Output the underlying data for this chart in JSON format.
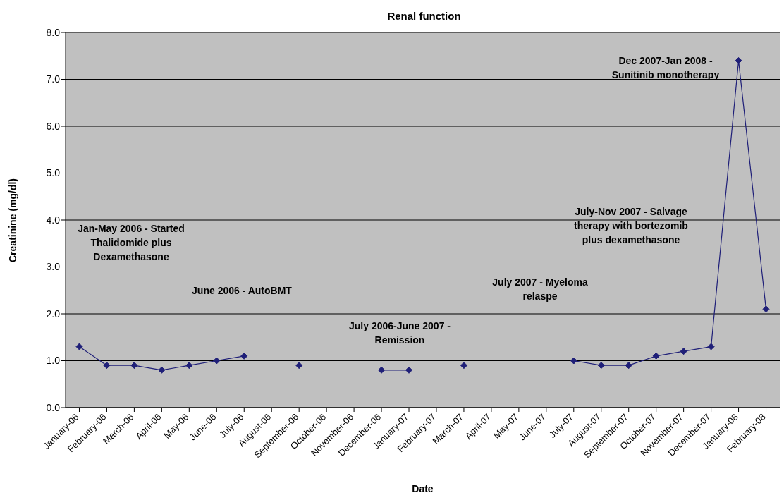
{
  "chart_data": {
    "type": "line",
    "title": "Renal function",
    "xlabel": "Date",
    "ylabel": "Creatinine (mg/dl)",
    "categories": [
      "January-06",
      "February-06",
      "March-06",
      "April-06",
      "May-06",
      "June-06",
      "July-06",
      "August-06",
      "September-06",
      "October-06",
      "November-06",
      "December-06",
      "January-07",
      "February-07",
      "March-07",
      "April-07",
      "May-07",
      "June-07",
      "July-07",
      "August-07",
      "September-07",
      "October-07",
      "November-07",
      "December-07",
      "January-08",
      "February-08"
    ],
    "series": [
      {
        "color": "#1f1f78",
        "values": [
          1.3,
          0.9,
          0.9,
          0.8,
          0.9,
          1.0,
          1.1,
          null,
          0.9,
          null,
          null,
          0.8,
          0.8,
          null,
          0.9,
          null,
          null,
          null,
          1.0,
          0.9,
          0.9,
          1.1,
          1.2,
          1.3,
          7.4,
          2.1
        ]
      }
    ],
    "ylim": [
      0,
      8
    ],
    "yticks": [
      {
        "value": 0,
        "label": "0.0"
      },
      {
        "value": 1,
        "label": "1.0"
      },
      {
        "value": 2,
        "label": "2.0"
      },
      {
        "value": 3,
        "label": "3.0"
      },
      {
        "value": 4,
        "label": "4.0"
      },
      {
        "value": 5,
        "label": "5.0"
      },
      {
        "value": 6,
        "label": "6.0"
      },
      {
        "value": 7,
        "label": "7.0"
      },
      {
        "value": 8,
        "label": "8.0"
      }
    ],
    "grid": "y",
    "legend": false,
    "marker": "diamond",
    "line_style": "solid",
    "annotations": [
      "Jan-May 2006 - Started\nThalidomide plus\nDexamethasone",
      "June 2006 - AutoBMT",
      "July 2006-June 2007 -\nRemission",
      "July 2007 - Myeloma\nrelaspe",
      "July-Nov 2007 - Salvage\ntherapy with bortezomib\nplus dexamethasone",
      "Dec 2007-Jan 2008 -\nSunitinib monotherapy"
    ]
  }
}
